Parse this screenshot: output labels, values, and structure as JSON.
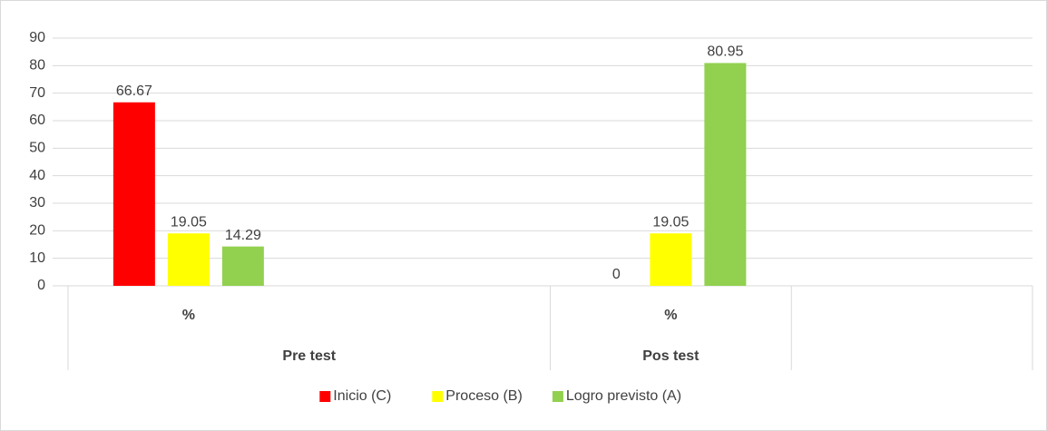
{
  "chart_data": {
    "type": "bar",
    "categories": [
      "%",
      null,
      "%",
      null
    ],
    "groups": [
      "Pre test",
      "Pre test",
      "Pos test",
      null
    ],
    "series": [
      {
        "name": "Inicio (C)",
        "color": "#ff0000",
        "values": [
          66.67,
          null,
          0,
          null
        ]
      },
      {
        "name": "Proceso (B)",
        "color": "#ffff00",
        "values": [
          19.05,
          null,
          19.05,
          null
        ]
      },
      {
        "name": "Logro previsto (A)",
        "color": "#92d050",
        "values": [
          14.29,
          null,
          80.95,
          null
        ]
      }
    ],
    "ylim": [
      0,
      90
    ],
    "yticks": [
      0,
      10,
      20,
      30,
      40,
      50,
      60,
      70,
      80,
      90
    ],
    "grid": true,
    "legend": "bottom"
  }
}
